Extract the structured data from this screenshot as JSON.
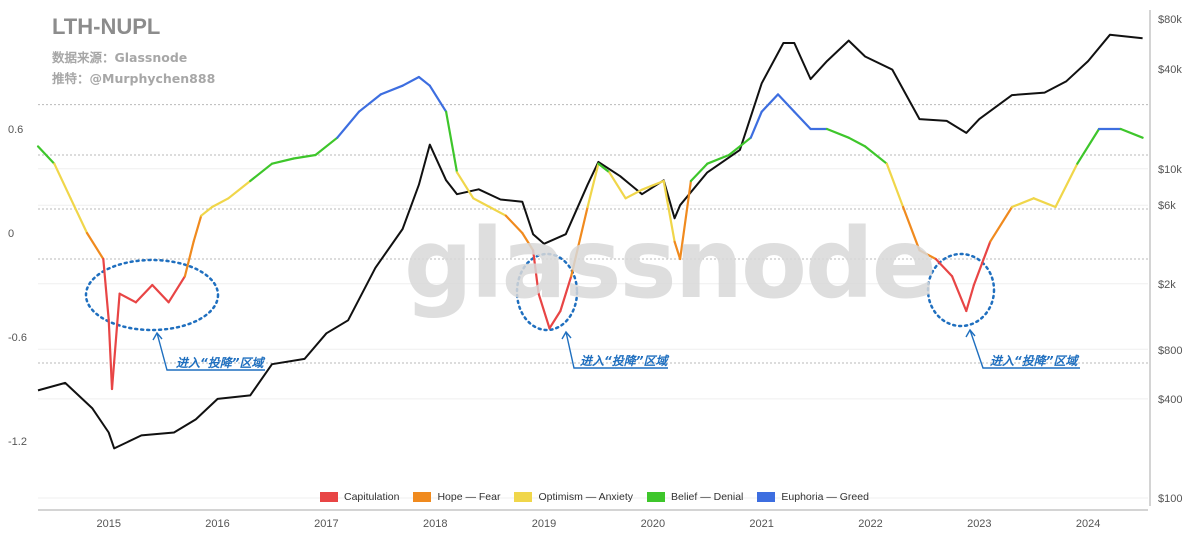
{
  "header": {
    "title": "LTH-NUPL",
    "source": "数据来源：Glassnode",
    "recommend": "推特：@Murphychen888"
  },
  "watermark": "glassnode",
  "annotations": [
    {
      "text": "进入“投降”区域"
    },
    {
      "text": "进入“投降”区域"
    },
    {
      "text": "进入“投降”区域"
    }
  ],
  "colors": {
    "capitulation": "#e84545",
    "hope_fear": "#f08a1e",
    "optimism_anxiety": "#f0d64a",
    "belief_denial": "#3ec62b",
    "euphoria_greed": "#3d6ee0",
    "price": "#111111",
    "callout": "#1f6fbf"
  },
  "chart_data": {
    "type": "line",
    "title": "LTH-NUPL",
    "x_ticks": [
      "2015",
      "2016",
      "2017",
      "2018",
      "2019",
      "2020",
      "2021",
      "2022",
      "2023",
      "2024"
    ],
    "y_left_ticks": [
      "0.6",
      "0",
      "-0.6",
      "-1.2"
    ],
    "y_right_ticks": [
      "$80k",
      "$40k",
      "$10k",
      "$6k",
      "$2k",
      "$800",
      "$400",
      "$100"
    ],
    "y_left_range": [
      -1.2,
      1.1
    ],
    "y_right_scale": "log",
    "legend": [
      {
        "name": "Capitulation",
        "color": "#e84545"
      },
      {
        "name": "Hope — Fear",
        "color": "#f08a1e"
      },
      {
        "name": "Optimism — Anxiety",
        "color": "#f0d64a"
      },
      {
        "name": "Belief — Denial",
        "color": "#3ec62b"
      },
      {
        "name": "Euphoria — Greed",
        "color": "#3d6ee0"
      }
    ],
    "legend_position": "bottom",
    "series": [
      {
        "name": "LTH-NUPL",
        "x": [
          2014.35,
          2014.5,
          2014.65,
          2014.8,
          2014.95,
          2015.0,
          2015.03,
          2015.1,
          2015.25,
          2015.4,
          2015.55,
          2015.7,
          2015.78,
          2015.85,
          2015.95,
          2016.1,
          2016.3,
          2016.5,
          2016.7,
          2016.9,
          2017.1,
          2017.3,
          2017.5,
          2017.7,
          2017.85,
          2017.95,
          2018.1,
          2018.2,
          2018.35,
          2018.5,
          2018.65,
          2018.8,
          2018.9,
          2018.95,
          2019.05,
          2019.15,
          2019.25,
          2019.4,
          2019.5,
          2019.6,
          2019.75,
          2019.9,
          2020.1,
          2020.2,
          2020.25,
          2020.35,
          2020.5,
          2020.7,
          2020.9,
          2021.0,
          2021.15,
          2021.3,
          2021.45,
          2021.6,
          2021.8,
          2021.95,
          2022.15,
          2022.3,
          2022.45,
          2022.6,
          2022.75,
          2022.88,
          2022.95,
          2023.1,
          2023.3,
          2023.5,
          2023.7,
          2023.9,
          2024.1,
          2024.3,
          2024.5
        ],
        "y": [
          0.65,
          0.55,
          0.35,
          0.15,
          0.0,
          -0.35,
          -0.75,
          -0.2,
          -0.25,
          -0.15,
          -0.25,
          -0.1,
          0.1,
          0.25,
          0.3,
          0.35,
          0.45,
          0.55,
          0.58,
          0.6,
          0.7,
          0.85,
          0.95,
          1.0,
          1.05,
          1.0,
          0.85,
          0.5,
          0.35,
          0.3,
          0.25,
          0.15,
          0.05,
          -0.2,
          -0.4,
          -0.3,
          -0.1,
          0.3,
          0.55,
          0.5,
          0.35,
          0.4,
          0.45,
          0.1,
          0.0,
          0.45,
          0.55,
          0.6,
          0.7,
          0.85,
          0.95,
          0.85,
          0.75,
          0.75,
          0.7,
          0.65,
          0.55,
          0.3,
          0.05,
          0.0,
          -0.1,
          -0.3,
          -0.15,
          0.1,
          0.3,
          0.35,
          0.3,
          0.55,
          0.75,
          0.75,
          0.7
        ],
        "y_axis": "left"
      },
      {
        "name": "Price",
        "x": [
          2014.35,
          2014.6,
          2014.85,
          2015.0,
          2015.05,
          2015.3,
          2015.6,
          2015.8,
          2016.0,
          2016.3,
          2016.5,
          2016.8,
          2017.0,
          2017.2,
          2017.45,
          2017.7,
          2017.85,
          2017.95,
          2018.1,
          2018.2,
          2018.4,
          2018.6,
          2018.8,
          2018.9,
          2019.0,
          2019.2,
          2019.4,
          2019.5,
          2019.7,
          2019.9,
          2020.1,
          2020.2,
          2020.25,
          2020.5,
          2020.8,
          2021.0,
          2021.2,
          2021.3,
          2021.45,
          2021.6,
          2021.8,
          2021.95,
          2022.2,
          2022.45,
          2022.7,
          2022.88,
          2023.0,
          2023.3,
          2023.6,
          2023.8,
          2024.0,
          2024.2,
          2024.5
        ],
        "y": [
          450,
          500,
          350,
          250,
          200,
          240,
          250,
          300,
          400,
          420,
          650,
          700,
          1000,
          1200,
          2500,
          4300,
          8000,
          14000,
          8500,
          7000,
          7500,
          6500,
          6300,
          4000,
          3500,
          4000,
          8000,
          11000,
          9000,
          7000,
          8500,
          5000,
          6000,
          9500,
          13000,
          33000,
          58000,
          58000,
          35000,
          45000,
          60000,
          48000,
          40000,
          20000,
          19500,
          16500,
          20000,
          28000,
          29000,
          34000,
          45000,
          65000,
          62000
        ],
        "y_axis": "right"
      }
    ]
  }
}
